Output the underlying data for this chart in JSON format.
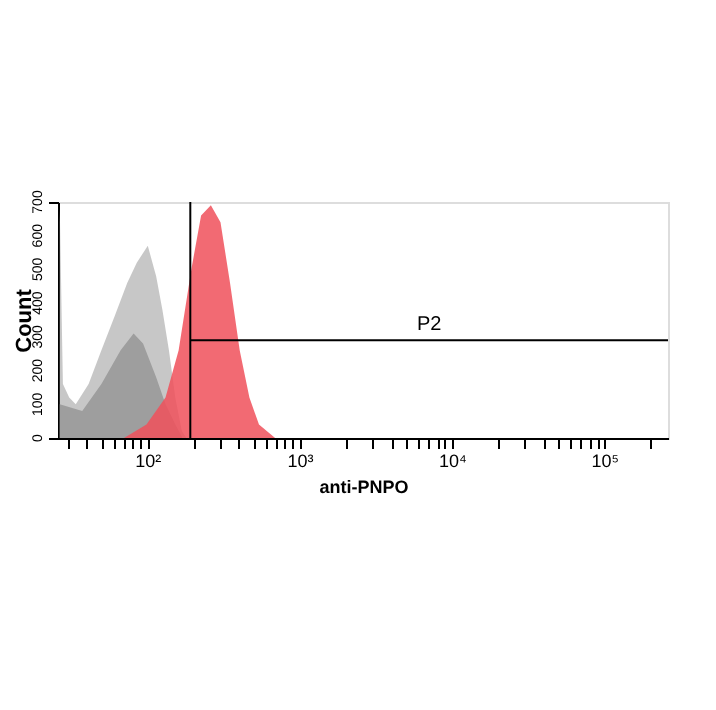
{
  "chart_data": {
    "type": "area",
    "xlabel": "anti-PNPO",
    "ylabel": "Count",
    "log": "x",
    "grid": false,
    "xlim": [
      26,
      262144
    ],
    "ylim": [
      0,
      700
    ],
    "xticks": [
      {
        "value": 30,
        "label": null
      },
      {
        "value": 40,
        "label": null
      },
      {
        "value": 50,
        "label": null
      },
      {
        "value": 60,
        "label": null
      },
      {
        "value": 70,
        "label": null
      },
      {
        "value": 80,
        "label": null
      },
      {
        "value": 90,
        "label": null
      },
      {
        "value": 100,
        "label": "10²"
      },
      {
        "value": 200,
        "label": null
      },
      {
        "value": 300,
        "label": null
      },
      {
        "value": 400,
        "label": null
      },
      {
        "value": 500,
        "label": null
      },
      {
        "value": 600,
        "label": null
      },
      {
        "value": 700,
        "label": null
      },
      {
        "value": 800,
        "label": null
      },
      {
        "value": 900,
        "label": null
      },
      {
        "value": 1000,
        "label": "10³"
      },
      {
        "value": 2000,
        "label": null
      },
      {
        "value": 3000,
        "label": null
      },
      {
        "value": 4000,
        "label": null
      },
      {
        "value": 5000,
        "label": null
      },
      {
        "value": 6000,
        "label": null
      },
      {
        "value": 7000,
        "label": null
      },
      {
        "value": 8000,
        "label": null
      },
      {
        "value": 9000,
        "label": null
      },
      {
        "value": 10000,
        "label": "10⁴"
      },
      {
        "value": 20000,
        "label": null
      },
      {
        "value": 30000,
        "label": null
      },
      {
        "value": 40000,
        "label": null
      },
      {
        "value": 50000,
        "label": null
      },
      {
        "value": 60000,
        "label": null
      },
      {
        "value": 70000,
        "label": null
      },
      {
        "value": 80000,
        "label": null
      },
      {
        "value": 90000,
        "label": null
      },
      {
        "value": 100000,
        "label": "10⁵"
      },
      {
        "value": 200000,
        "label": null
      }
    ],
    "yticks": [
      0,
      100,
      200,
      300,
      400,
      500,
      600,
      700
    ],
    "series": [
      {
        "color": "#bdbdbd",
        "x": [
          26.7,
          28,
          30.8,
          34,
          41.3,
          50.1,
          61,
          74,
          85.5,
          101,
          114.6,
          126,
          139,
          153,
          169,
          181
        ],
        "values": [
          680,
          160,
          120,
          100,
          160,
          260,
          360,
          460,
          520,
          570,
          480,
          380,
          260,
          120,
          20,
          0
        ]
      },
      {
        "color": "#969696",
        "x": [
          26.7,
          37.5,
          50.1,
          67,
          81.5,
          94,
          114.6,
          132,
          153,
          169
        ],
        "values": [
          100,
          80,
          160,
          260,
          310,
          280,
          180,
          100,
          40,
          4
        ]
      },
      {
        "color": "#f0505a",
        "x": [
          70.5,
          99,
          132,
          161,
          195,
          226,
          262,
          303,
          350,
          405,
          469,
          542,
          692
        ],
        "values": [
          0,
          40,
          120,
          260,
          500,
          660,
          690,
          640,
          460,
          260,
          120,
          40,
          0
        ]
      }
    ],
    "ref_lines": [
      {
        "axis": "x",
        "value": 192,
        "color": "#000000"
      },
      {
        "axis": "y",
        "value": 290,
        "label": "P2",
        "color": "#000000"
      }
    ]
  }
}
